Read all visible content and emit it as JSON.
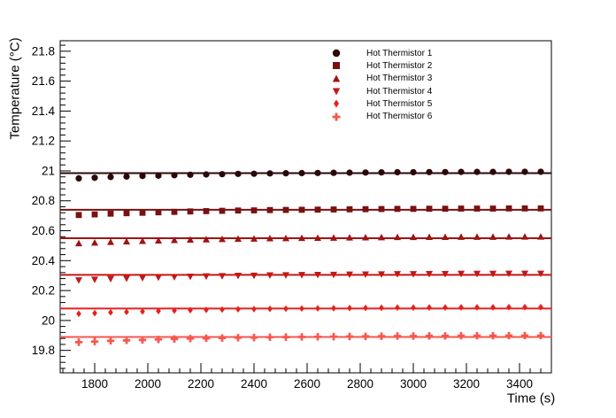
{
  "figure": {
    "background": "#ffffff",
    "axis_color": "#000000",
    "text_color": "#000000"
  },
  "chart_data": {
    "type": "scatter",
    "title": "",
    "xlabel": "Time (s)",
    "ylabel": "Temperature (°C)",
    "xlim": [
      1670,
      3520
    ],
    "ylim": [
      19.65,
      21.87
    ],
    "grid": false,
    "legend_position": "top-right-inside",
    "legend_border": false,
    "xticks": {
      "major": [
        1800,
        2000,
        2200,
        2400,
        2600,
        2800,
        3000,
        3200,
        3400
      ],
      "minor_step": 40
    },
    "yticks": {
      "major": [
        19.8,
        20.0,
        20.2,
        20.4,
        20.6,
        20.8,
        21.0,
        21.2,
        21.4,
        21.6,
        21.8
      ],
      "labels": [
        "19.8",
        "20",
        "20.2",
        "20.4",
        "20.6",
        "20.8",
        "21",
        "21.2",
        "21.4",
        "21.6",
        "21.8"
      ],
      "minor_step": 0.04
    },
    "x": [
      1740,
      1800,
      1860,
      1920,
      1980,
      2040,
      2100,
      2160,
      2220,
      2280,
      2340,
      2400,
      2460,
      2520,
      2580,
      2640,
      2700,
      2760,
      2820,
      2880,
      2940,
      3000,
      3060,
      3120,
      3180,
      3240,
      3300,
      3360,
      3420,
      3480
    ],
    "series": [
      {
        "name": "Hot Thermistor 1",
        "marker": "filled-circle",
        "color": "#2b0808",
        "fit_value": 20.985,
        "values": [
          20.95,
          20.954,
          20.959,
          20.962,
          20.966,
          20.968,
          20.971,
          20.974,
          20.976,
          20.978,
          20.98,
          20.981,
          20.983,
          20.984,
          20.985,
          20.986,
          20.987,
          20.988,
          20.989,
          20.99,
          20.991,
          20.991,
          20.992,
          20.992,
          20.993,
          20.993,
          20.993,
          20.994,
          20.994,
          20.994
        ]
      },
      {
        "name": "Hot Thermistor 2",
        "marker": "filled-square",
        "color": "#7a1010",
        "fit_value": 20.74,
        "values": [
          20.705,
          20.709,
          20.714,
          20.717,
          20.72,
          20.723,
          20.726,
          20.729,
          20.731,
          20.733,
          20.735,
          20.736,
          20.738,
          20.739,
          20.74,
          20.741,
          20.742,
          20.743,
          20.744,
          20.745,
          20.746,
          20.746,
          20.747,
          20.747,
          20.748,
          20.748,
          20.748,
          20.749,
          20.749,
          20.749
        ]
      },
      {
        "name": "Hot Thermistor 3",
        "marker": "triangle-up",
        "color": "#9e1414",
        "fit_value": 20.55,
        "values": [
          20.515,
          20.519,
          20.524,
          20.527,
          20.53,
          20.533,
          20.536,
          20.539,
          20.541,
          20.543,
          20.545,
          20.546,
          20.548,
          20.549,
          20.55,
          20.551,
          20.552,
          20.553,
          20.554,
          20.555,
          20.556,
          20.556,
          20.557,
          20.557,
          20.558,
          20.558,
          20.558,
          20.559,
          20.559,
          20.559
        ]
      },
      {
        "name": "Hot Thermistor 4",
        "marker": "triangle-down",
        "color": "#c31717",
        "fit_value": 20.305,
        "values": [
          20.27,
          20.274,
          20.279,
          20.282,
          20.285,
          20.288,
          20.291,
          20.294,
          20.296,
          20.298,
          20.3,
          20.301,
          20.303,
          20.304,
          20.305,
          20.306,
          20.307,
          20.308,
          20.309,
          20.31,
          20.311,
          20.311,
          20.312,
          20.312,
          20.313,
          20.313,
          20.313,
          20.314,
          20.314,
          20.314
        ]
      },
      {
        "name": "Hot Thermistor 5",
        "marker": "diamond",
        "color": "#e32020",
        "fit_value": 20.08,
        "values": [
          20.045,
          20.049,
          20.054,
          20.057,
          20.06,
          20.063,
          20.066,
          20.069,
          20.071,
          20.073,
          20.075,
          20.076,
          20.078,
          20.079,
          20.08,
          20.081,
          20.082,
          20.083,
          20.084,
          20.085,
          20.086,
          20.086,
          20.087,
          20.087,
          20.088,
          20.088,
          20.088,
          20.089,
          20.089,
          20.089
        ]
      },
      {
        "name": "Hot Thermistor 6",
        "marker": "plus-cross",
        "color": "#f6564e",
        "fit_value": 19.89,
        "values": [
          19.855,
          19.859,
          19.864,
          19.867,
          19.87,
          19.873,
          19.876,
          19.879,
          19.881,
          19.883,
          19.885,
          19.886,
          19.888,
          19.889,
          19.89,
          19.891,
          19.892,
          19.893,
          19.894,
          19.895,
          19.896,
          19.896,
          19.897,
          19.897,
          19.898,
          19.898,
          19.898,
          19.899,
          19.899,
          19.899
        ]
      }
    ]
  }
}
